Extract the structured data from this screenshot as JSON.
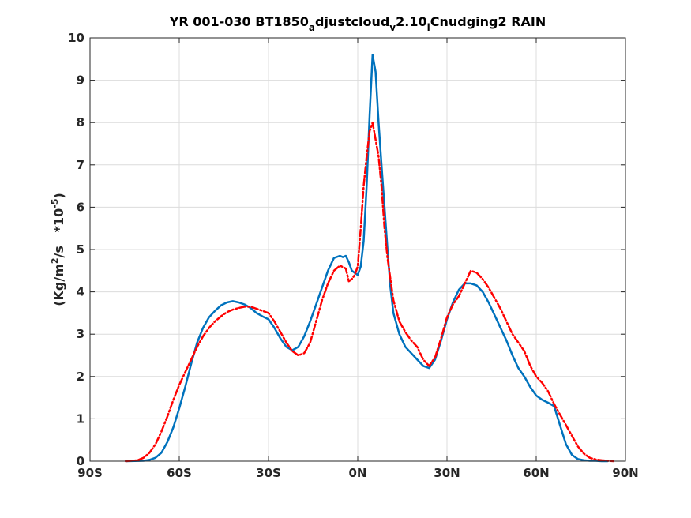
{
  "chart_data": {
    "type": "line",
    "title": "YR 001-030 BT1850_adjustcloud_v2.10_lCnudging2 RAIN",
    "title_parts": {
      "p1": "YR 001-030 BT1850",
      "s1": "a",
      "p2": "djustcloud",
      "s2": "v",
      "p3": "2.10",
      "s3": "l",
      "p4": "Cnudging2 RAIN"
    },
    "xlabel": "",
    "ylabel": "(Kg/m^2/s   *10^-5)",
    "ylabel_parts": {
      "a": "(Kg/m",
      "b": "2",
      "c": "/s   *10",
      "d": "-5",
      "e": ")"
    },
    "xlim": [
      -90,
      90
    ],
    "ylim": [
      0,
      10
    ],
    "x_ticks": [
      -90,
      -60,
      -30,
      0,
      30,
      60,
      90
    ],
    "x_tick_labels": [
      "90S",
      "60S",
      "30S",
      "0N",
      "30N",
      "60N",
      "90N"
    ],
    "y_ticks": [
      0,
      1,
      2,
      3,
      4,
      5,
      6,
      7,
      8,
      9,
      10
    ],
    "y_tick_labels": [
      "0",
      "1",
      "2",
      "3",
      "4",
      "5",
      "6",
      "7",
      "8",
      "9",
      "10"
    ],
    "grid": true,
    "legend": "none",
    "series": [
      {
        "color": "#0072BD",
        "style": "solid",
        "x": [
          -78,
          -72,
          -70,
          -68,
          -66,
          -64,
          -62,
          -60,
          -58,
          -56,
          -54,
          -52,
          -50,
          -48,
          -46,
          -44,
          -42,
          -40,
          -38,
          -36,
          -34,
          -32,
          -30,
          -28,
          -26,
          -24,
          -22,
          -20,
          -18,
          -16,
          -14,
          -12,
          -10,
          -8,
          -6,
          -5,
          -4,
          -3,
          -2,
          -1,
          0,
          1,
          2,
          3,
          4,
          5,
          6,
          7,
          8,
          9,
          10,
          11,
          12,
          14,
          16,
          18,
          20,
          22,
          24,
          26,
          28,
          30,
          32,
          34,
          36,
          38,
          40,
          42,
          44,
          46,
          48,
          50,
          52,
          54,
          56,
          58,
          60,
          62,
          64,
          66,
          68,
          70,
          72,
          74,
          76,
          78,
          80,
          82,
          84
        ],
        "y": [
          0,
          0.01,
          0.03,
          0.08,
          0.2,
          0.45,
          0.8,
          1.25,
          1.75,
          2.3,
          2.8,
          3.15,
          3.4,
          3.55,
          3.68,
          3.75,
          3.78,
          3.75,
          3.7,
          3.62,
          3.5,
          3.42,
          3.35,
          3.15,
          2.9,
          2.7,
          2.62,
          2.7,
          2.95,
          3.3,
          3.7,
          4.1,
          4.5,
          4.8,
          4.85,
          4.82,
          4.85,
          4.7,
          4.5,
          4.45,
          4.4,
          4.6,
          5.2,
          6.5,
          8.2,
          9.6,
          9.2,
          8.0,
          7.0,
          6.0,
          5.0,
          4.1,
          3.5,
          3.0,
          2.7,
          2.55,
          2.4,
          2.25,
          2.2,
          2.4,
          2.85,
          3.35,
          3.75,
          4.05,
          4.2,
          4.2,
          4.15,
          4.0,
          3.75,
          3.45,
          3.15,
          2.85,
          2.5,
          2.2,
          2.0,
          1.75,
          1.55,
          1.45,
          1.38,
          1.3,
          0.85,
          0.4,
          0.15,
          0.05,
          0.02,
          0.01,
          0.01,
          0,
          0
        ]
      },
      {
        "color": "#FF0000",
        "style": "dashdot",
        "x": [
          -78,
          -74,
          -72,
          -70,
          -68,
          -66,
          -64,
          -62,
          -60,
          -58,
          -56,
          -54,
          -52,
          -50,
          -48,
          -46,
          -44,
          -42,
          -40,
          -38,
          -36,
          -34,
          -32,
          -30,
          -28,
          -26,
          -24,
          -22,
          -20,
          -18,
          -16,
          -14,
          -12,
          -10,
          -8,
          -6,
          -4,
          -3,
          -2,
          -1,
          0,
          1,
          2,
          3,
          4,
          5,
          6,
          7,
          8,
          9,
          10,
          11,
          12,
          14,
          16,
          18,
          20,
          22,
          24,
          26,
          28,
          30,
          32,
          34,
          36,
          38,
          40,
          42,
          44,
          46,
          48,
          50,
          52,
          54,
          56,
          58,
          60,
          62,
          64,
          66,
          68,
          70,
          72,
          74,
          76,
          78,
          80,
          82,
          84,
          86
        ],
        "y": [
          0,
          0.02,
          0.08,
          0.2,
          0.4,
          0.7,
          1.05,
          1.45,
          1.8,
          2.1,
          2.4,
          2.7,
          2.95,
          3.15,
          3.3,
          3.42,
          3.52,
          3.58,
          3.62,
          3.65,
          3.65,
          3.6,
          3.55,
          3.5,
          3.3,
          3.05,
          2.8,
          2.6,
          2.5,
          2.55,
          2.8,
          3.3,
          3.8,
          4.2,
          4.5,
          4.62,
          4.55,
          4.25,
          4.3,
          4.4,
          4.6,
          5.5,
          6.5,
          7.2,
          7.8,
          8.0,
          7.6,
          7.2,
          6.5,
          5.5,
          4.8,
          4.3,
          3.8,
          3.3,
          3.05,
          2.85,
          2.7,
          2.4,
          2.25,
          2.45,
          2.9,
          3.4,
          3.7,
          3.9,
          4.2,
          4.5,
          4.45,
          4.3,
          4.1,
          3.85,
          3.6,
          3.3,
          3.0,
          2.8,
          2.6,
          2.25,
          2.0,
          1.85,
          1.65,
          1.35,
          1.1,
          0.85,
          0.6,
          0.35,
          0.18,
          0.08,
          0.04,
          0.02,
          0.01,
          0
        ]
      }
    ]
  }
}
